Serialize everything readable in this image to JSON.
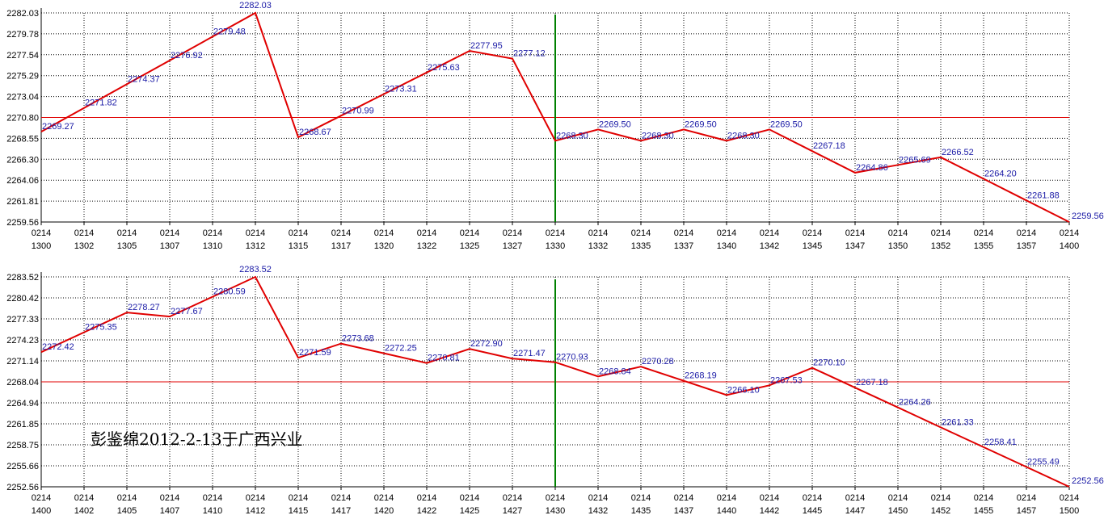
{
  "chart_data": [
    {
      "type": "line",
      "x_top": [
        "0214",
        "0214",
        "0214",
        "0214",
        "0214",
        "0214",
        "0214",
        "0214",
        "0214",
        "0214",
        "0214",
        "0214",
        "0214",
        "0214",
        "0214",
        "0214",
        "0214",
        "0214",
        "0214",
        "0214",
        "0214",
        "0214",
        "0214",
        "0214",
        "0214"
      ],
      "x_bottom": [
        "1300",
        "1302",
        "1305",
        "1307",
        "1310",
        "1312",
        "1315",
        "1317",
        "1320",
        "1322",
        "1325",
        "1327",
        "1330",
        "1332",
        "1335",
        "1337",
        "1340",
        "1342",
        "1345",
        "1347",
        "1350",
        "1352",
        "1355",
        "1357",
        "1400"
      ],
      "yticks": [
        "2282.03",
        "2279.78",
        "2277.54",
        "2275.29",
        "2273.04",
        "2270.80",
        "2268.55",
        "2266.30",
        "2264.06",
        "2261.81",
        "2259.56"
      ],
      "ylim": [
        2259.56,
        2282.03
      ],
      "reference_y": 2270.8,
      "marker_index": 12,
      "points": [
        {
          "i": 0,
          "y": 2269.27,
          "label": "2269.27"
        },
        {
          "i": 1,
          "y": 2271.82,
          "label": "2271.82"
        },
        {
          "i": 2,
          "y": 2274.37,
          "label": "2274.37"
        },
        {
          "i": 3,
          "y": 2276.92,
          "label": "2276.92"
        },
        {
          "i": 4,
          "y": 2279.48,
          "label": "2279.48"
        },
        {
          "i": 5,
          "y": 2282.03,
          "label": "2282.03"
        },
        {
          "i": 6,
          "y": 2268.67,
          "label": "2268.67"
        },
        {
          "i": 7,
          "y": 2270.99,
          "label": "2270.99"
        },
        {
          "i": 8,
          "y": 2273.31,
          "label": "2273.31"
        },
        {
          "i": 9,
          "y": 2275.63,
          "label": "2275.63"
        },
        {
          "i": 10,
          "y": 2277.95,
          "label": "2277.95"
        },
        {
          "i": 11,
          "y": 2277.12,
          "label": "2277.12"
        },
        {
          "i": 12,
          "y": 2268.3,
          "label": "2268.30"
        },
        {
          "i": 13,
          "y": 2269.5,
          "label": "2269.50"
        },
        {
          "i": 14,
          "y": 2268.3,
          "label": "2268.30"
        },
        {
          "i": 15,
          "y": 2269.5,
          "label": "2269.50"
        },
        {
          "i": 16,
          "y": 2268.3,
          "label": "2268.30"
        },
        {
          "i": 17,
          "y": 2269.5,
          "label": "2269.50"
        },
        {
          "i": 18,
          "y": 2267.18,
          "label": "2267.18"
        },
        {
          "i": 19,
          "y": 2264.86,
          "label": "2264.86"
        },
        {
          "i": 20,
          "y": 2265.69,
          "label": "2265.69"
        },
        {
          "i": 21,
          "y": 2266.52,
          "label": "2266.52"
        },
        {
          "i": 22,
          "y": 2264.2,
          "label": "2264.20"
        },
        {
          "i": 23,
          "y": 2261.88,
          "label": "2261.88"
        },
        {
          "i": 24,
          "y": 2259.56,
          "label": "2259.56"
        }
      ],
      "line_color": "#e00000",
      "reference_color": "#e00000",
      "marker_color": "#008000",
      "label_color": "#1a1aa6"
    },
    {
      "type": "line",
      "x_top": [
        "0214",
        "0214",
        "0214",
        "0214",
        "0214",
        "0214",
        "0214",
        "0214",
        "0214",
        "0214",
        "0214",
        "0214",
        "0214",
        "0214",
        "0214",
        "0214",
        "0214",
        "0214",
        "0214",
        "0214",
        "0214",
        "0214",
        "0214",
        "0214",
        "0214"
      ],
      "x_bottom": [
        "1400",
        "1402",
        "1405",
        "1407",
        "1410",
        "1412",
        "1415",
        "1417",
        "1420",
        "1422",
        "1425",
        "1427",
        "1430",
        "1432",
        "1435",
        "1437",
        "1440",
        "1442",
        "1445",
        "1447",
        "1450",
        "1452",
        "1455",
        "1457",
        "1500"
      ],
      "yticks": [
        "2283.52",
        "2280.42",
        "2277.33",
        "2274.23",
        "2271.14",
        "2268.04",
        "2264.94",
        "2261.85",
        "2258.75",
        "2255.66",
        "2252.56"
      ],
      "ylim": [
        2252.56,
        2283.52
      ],
      "reference_y": 2268.04,
      "marker_index": 12,
      "points": [
        {
          "i": 0,
          "y": 2272.42,
          "label": "2272.42"
        },
        {
          "i": 1,
          "y": 2275.35,
          "label": "2275.35"
        },
        {
          "i": 2,
          "y": 2278.27,
          "label": "2278.27"
        },
        {
          "i": 3,
          "y": 2277.67,
          "label": "2277.67"
        },
        {
          "i": 4,
          "y": 2280.59,
          "label": "2280.59"
        },
        {
          "i": 5,
          "y": 2283.52,
          "label": "2283.52"
        },
        {
          "i": 6,
          "y": 2271.59,
          "label": "2271.59"
        },
        {
          "i": 7,
          "y": 2273.68,
          "label": "2273.68"
        },
        {
          "i": 8,
          "y": 2272.25,
          "label": "2272.25"
        },
        {
          "i": 9,
          "y": 2270.81,
          "label": "2270.81"
        },
        {
          "i": 10,
          "y": 2272.9,
          "label": "2272.90"
        },
        {
          "i": 11,
          "y": 2271.47,
          "label": "2271.47"
        },
        {
          "i": 12,
          "y": 2270.93,
          "label": "2270.93"
        },
        {
          "i": 13,
          "y": 2268.84,
          "label": "2268.84"
        },
        {
          "i": 14,
          "y": 2270.28,
          "label": "2270.28"
        },
        {
          "i": 15,
          "y": 2268.19,
          "label": "2268.19"
        },
        {
          "i": 16,
          "y": 2266.1,
          "label": "2266.10"
        },
        {
          "i": 17,
          "y": 2267.53,
          "label": "2267.53"
        },
        {
          "i": 18,
          "y": 2270.1,
          "label": "2270.10"
        },
        {
          "i": 19,
          "y": 2267.18,
          "label": "2267.18"
        },
        {
          "i": 20,
          "y": 2264.26,
          "label": "2264.26"
        },
        {
          "i": 21,
          "y": 2261.33,
          "label": "2261.33"
        },
        {
          "i": 22,
          "y": 2258.41,
          "label": "2258.41"
        },
        {
          "i": 23,
          "y": 2255.49,
          "label": "2255.49"
        },
        {
          "i": 24,
          "y": 2252.56,
          "label": "2252.56"
        }
      ],
      "annotation": "彭鉴绵2012-2-13于广西兴业",
      "line_color": "#e00000",
      "reference_color": "#e00000",
      "marker_color": "#008000",
      "label_color": "#1a1aa6"
    }
  ]
}
